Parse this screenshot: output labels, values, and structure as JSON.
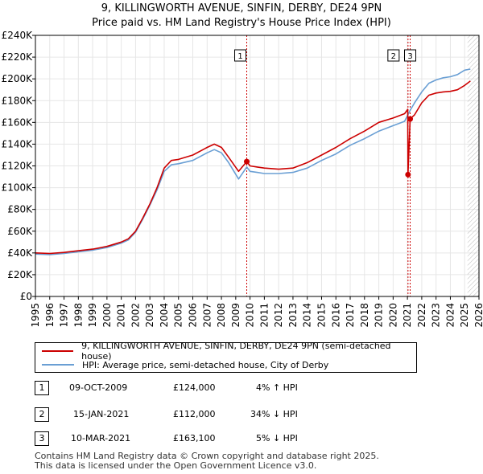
{
  "title_line1": "9, KILLINGWORTH AVENUE, SINFIN, DERBY, DE24 9PN",
  "title_line2": "Price paid vs. HM Land Registry's House Price Index (HPI)",
  "colors": {
    "property": "#cc0000",
    "hpi": "#6a9fd4",
    "marker_line": "#cc0000",
    "hatch": "#999999"
  },
  "chart_data": {
    "type": "line",
    "ylim": [
      0,
      240000
    ],
    "xlim": [
      1995,
      2026
    ],
    "yticks": [
      0,
      20000,
      40000,
      60000,
      80000,
      100000,
      120000,
      140000,
      160000,
      180000,
      200000,
      220000,
      240000
    ],
    "ytick_labels": [
      "£0",
      "£20K",
      "£40K",
      "£60K",
      "£80K",
      "£100K",
      "£120K",
      "£140K",
      "£160K",
      "£180K",
      "£200K",
      "£220K",
      "£240K"
    ],
    "xticks": [
      "1995",
      "1996",
      "1997",
      "1998",
      "1999",
      "2000",
      "2001",
      "2002",
      "2003",
      "2004",
      "2005",
      "2006",
      "2007",
      "2008",
      "2009",
      "2010",
      "2011",
      "2012",
      "2013",
      "2014",
      "2015",
      "2016",
      "2017",
      "2018",
      "2019",
      "2020",
      "2021",
      "2022",
      "2023",
      "2024",
      "2025",
      "2026"
    ],
    "hatched_after": 2025.2,
    "series": [
      {
        "name": "9, KILLINGWORTH AVENUE, SINFIN, DERBY, DE24 9PN (semi-detached house)",
        "x": [
          1995,
          1996,
          1997,
          1998,
          1999,
          2000,
          2001,
          2001.5,
          2002,
          2002.5,
          2003,
          2003.5,
          2004,
          2004.5,
          2005,
          2006,
          2007,
          2007.5,
          2008,
          2008.5,
          2009.2,
          2009.77,
          2010,
          2010.5,
          2011,
          2012,
          2013,
          2014,
          2015,
          2016,
          2017,
          2018,
          2019,
          2020,
          2020.8,
          2021.02,
          2021.04,
          2021.19,
          2021.5,
          2022,
          2022.5,
          2023,
          2023.5,
          2024,
          2024.5,
          2025,
          2025.4
        ],
        "values": [
          40000,
          39500,
          40500,
          42000,
          43500,
          46000,
          50000,
          53000,
          60000,
          72000,
          85000,
          100000,
          118000,
          125000,
          126000,
          130000,
          137000,
          140000,
          137000,
          128000,
          115000,
          124000,
          120000,
          119000,
          118000,
          117000,
          118000,
          123000,
          130000,
          137000,
          145000,
          152000,
          160000,
          164000,
          168000,
          172000,
          112000,
          163100,
          167000,
          178000,
          185000,
          187000,
          188000,
          188500,
          190000,
          194000,
          198000
        ]
      },
      {
        "name": "HPI: Average price, semi-detached house, City of Derby",
        "x": [
          1995,
          1996,
          1997,
          1998,
          1999,
          2000,
          2001,
          2001.5,
          2002,
          2002.5,
          2003,
          2003.5,
          2004,
          2004.5,
          2005,
          2006,
          2007,
          2007.5,
          2008,
          2008.5,
          2009.2,
          2009.77,
          2010,
          2010.5,
          2011,
          2012,
          2013,
          2014,
          2015,
          2016,
          2017,
          2018,
          2019,
          2020,
          2020.8,
          2021.19,
          2021.5,
          2022,
          2022.5,
          2023,
          2023.5,
          2024,
          2024.5,
          2025,
          2025.4
        ],
        "values": [
          39000,
          38500,
          39500,
          41000,
          42500,
          45000,
          49000,
          52000,
          59000,
          71000,
          84000,
          98000,
          115000,
          121000,
          122000,
          125000,
          132000,
          135000,
          132000,
          123000,
          108000,
          119000,
          115000,
          114000,
          113000,
          113000,
          114000,
          118000,
          125000,
          131000,
          139000,
          145000,
          152000,
          157000,
          161000,
          171000,
          178000,
          188000,
          196000,
          199000,
          201000,
          202000,
          204000,
          208000,
          209000
        ]
      }
    ],
    "annotations": [
      {
        "label": "1",
        "x": 2009.77,
        "y": 124000
      },
      {
        "label": "2",
        "x": 2021.04,
        "y": 112000
      },
      {
        "label": "3",
        "x": 2021.19,
        "y": 163100
      }
    ]
  },
  "legend": {
    "property": "9, KILLINGWORTH AVENUE, SINFIN, DERBY, DE24 9PN (semi-detached house)",
    "hpi": "HPI: Average price, semi-detached house, City of Derby"
  },
  "transactions": [
    {
      "num": "1",
      "date": "09-OCT-2009",
      "price": "£124,000",
      "hpi": "4% ↑ HPI"
    },
    {
      "num": "2",
      "date": "15-JAN-2021",
      "price": "£112,000",
      "hpi": "34% ↓ HPI"
    },
    {
      "num": "3",
      "date": "10-MAR-2021",
      "price": "£163,100",
      "hpi": "5% ↓ HPI"
    }
  ],
  "footer_line1": "Contains HM Land Registry data © Crown copyright and database right 2025.",
  "footer_line2": "This data is licensed under the Open Government Licence v3.0."
}
